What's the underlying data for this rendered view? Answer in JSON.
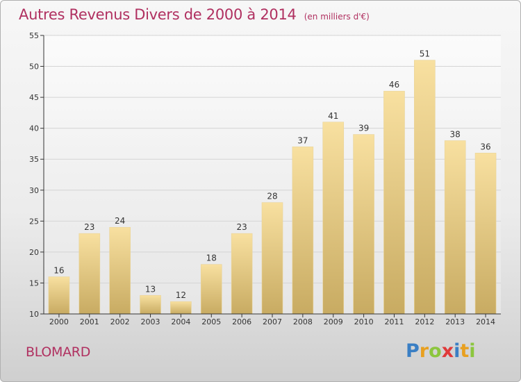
{
  "title": "Autres Revenus Divers de 2000 à 2014",
  "unit_note": "(en milliers d'€)",
  "commune": "BLOMARD",
  "brand": {
    "name": "Proxiti",
    "letters": [
      {
        "char": "P",
        "color": "#3a7fc4"
      },
      {
        "char": "r",
        "color": "#e8a020"
      },
      {
        "char": "o",
        "color": "#8cc63e"
      },
      {
        "char": "x",
        "color": "#e03a3a"
      },
      {
        "char": "i",
        "color": "#3a7fc4"
      },
      {
        "char": "t",
        "color": "#e8a020"
      },
      {
        "char": "i",
        "color": "#8cc63e"
      }
    ]
  },
  "colors": {
    "title": "#b03060",
    "bar_top": "#f8e0a0",
    "bar_bottom": "#c8ab62",
    "axis": "#333333",
    "grid": "#d4d4d4"
  },
  "chart_data": {
    "type": "bar",
    "categories": [
      "2000",
      "2001",
      "2002",
      "2003",
      "2004",
      "2005",
      "2006",
      "2007",
      "2008",
      "2009",
      "2010",
      "2011",
      "2012",
      "2013",
      "2014"
    ],
    "values": [
      16,
      23,
      24,
      13,
      12,
      18,
      23,
      28,
      37,
      41,
      39,
      46,
      51,
      38,
      36
    ],
    "ylim": [
      10,
      55
    ],
    "yticks": [
      10,
      15,
      20,
      25,
      30,
      35,
      40,
      45,
      50,
      55
    ],
    "grid": true,
    "data_labels": true
  }
}
